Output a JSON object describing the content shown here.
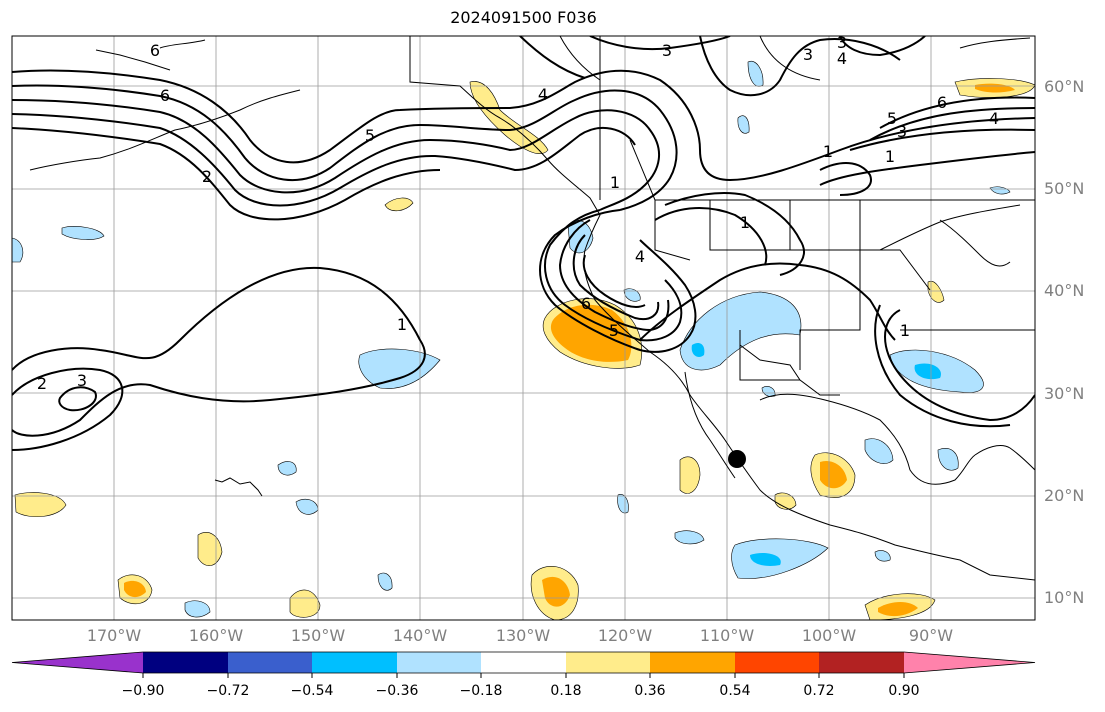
{
  "title": "2024091500 F036",
  "lat_labels": [
    "60°N",
    "50°N",
    "40°N",
    "30°N",
    "20°N",
    "10°N"
  ],
  "lon_labels": [
    "170°W",
    "160°W",
    "150°W",
    "140°W",
    "130°W",
    "120°W",
    "110°W",
    "100°W",
    "90°W"
  ],
  "colorbar": {
    "labels": [
      "−0.90",
      "−0.72",
      "−0.54",
      "−0.36",
      "−0.18",
      "0.18",
      "0.36",
      "0.54",
      "0.72",
      "0.90"
    ],
    "colors": [
      "#9932CC",
      "#000080",
      "#3A5FCD",
      "#00BFFF",
      "#B0E2FF",
      "#FFFFFF",
      "#FFEC8B",
      "#FFA500",
      "#FF4500",
      "#B22222",
      "#FF82AB"
    ]
  },
  "contour_labels": [
    "6",
    "6",
    "5",
    "2",
    "3",
    "4",
    "3",
    "3",
    "4",
    "5",
    "3",
    "4",
    "6",
    "1",
    "1",
    "1",
    "1",
    "4",
    "1",
    "6",
    "5",
    "2",
    "3",
    "1"
  ],
  "shading_colors": {
    "light_blue": "#B0E2FF",
    "blue": "#00BFFF",
    "light_yellow": "#FFEC8B",
    "orange": "#FFA500"
  },
  "marker": "point-marker"
}
